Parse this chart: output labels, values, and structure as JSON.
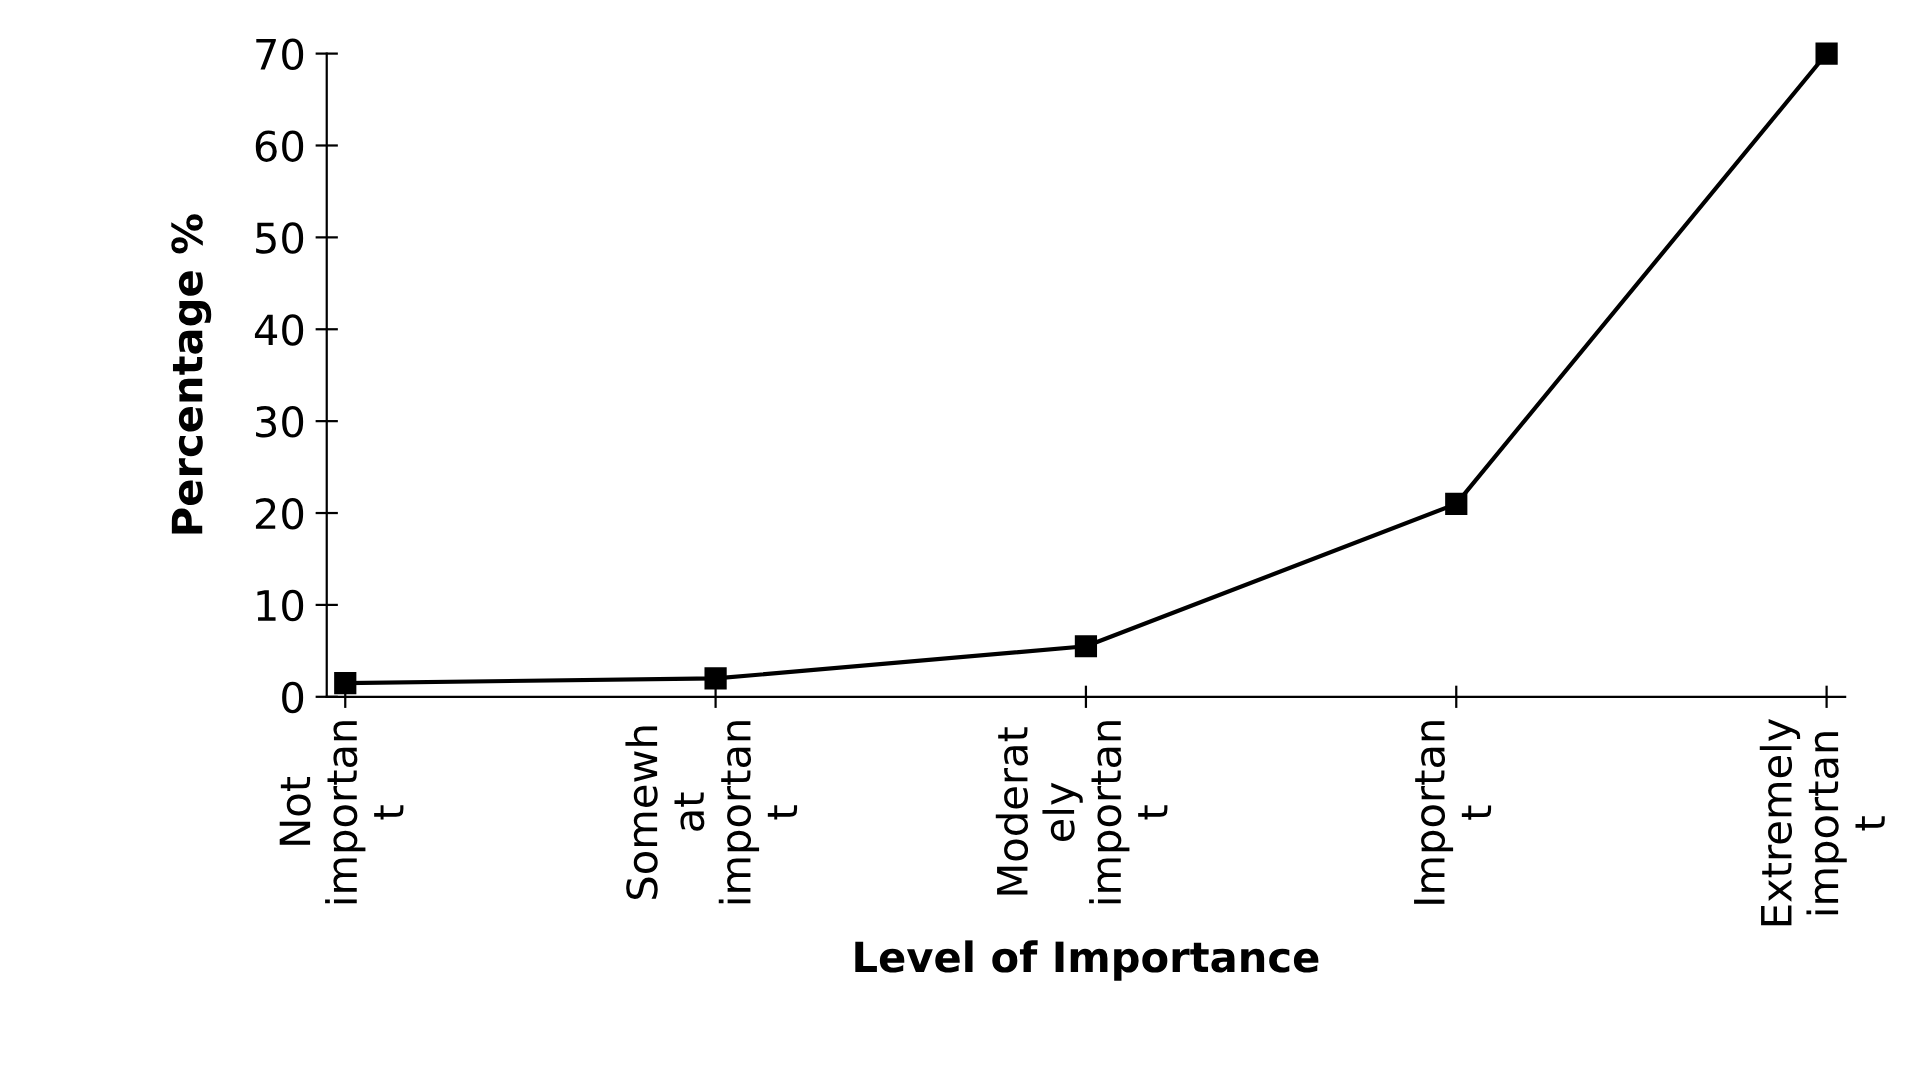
{
  "chart_data": {
    "type": "line",
    "xlabel": "Level of Importance",
    "ylabel": "Percentage %",
    "categories": [
      "Not\nimportan\nt",
      "Somewh\nat\nimportan\nt",
      "Moderat\nely\nimportan\nt",
      "Importan\nt",
      "Extremely\nimportan\nt"
    ],
    "series": [
      {
        "color": "#000000",
        "values": [
          1.5,
          2,
          5.5,
          21,
          70
        ]
      }
    ],
    "ylim": [
      0,
      70
    ],
    "yticks": [
      0,
      10,
      20,
      30,
      40,
      50,
      60,
      70
    ],
    "grid": false,
    "marker": "square",
    "line_style": "solid"
  }
}
